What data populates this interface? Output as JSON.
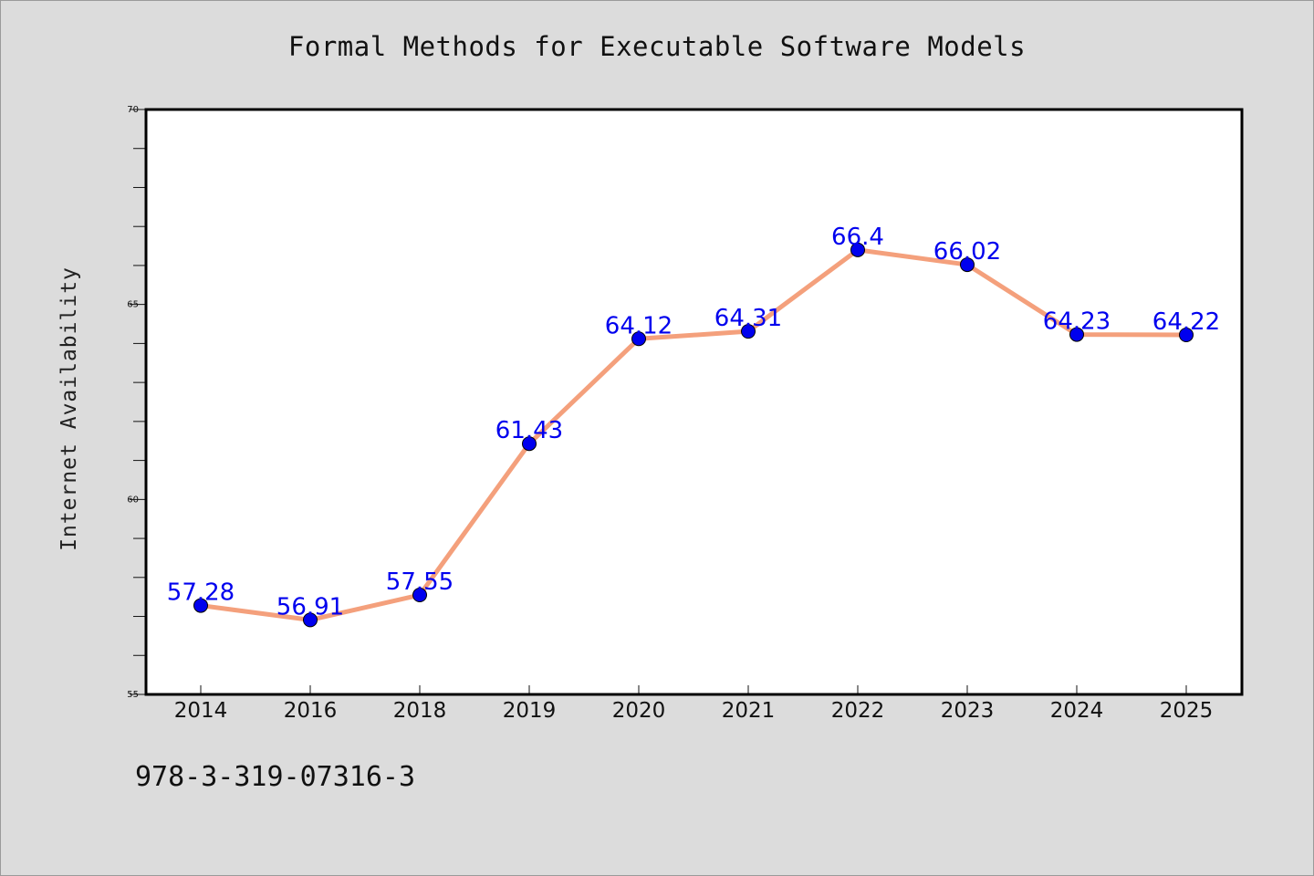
{
  "chart_data": {
    "type": "line",
    "title": "Formal Methods for Executable Software Models",
    "xlabel": "",
    "ylabel": "Internet Availability",
    "categories": [
      "2014",
      "2016",
      "2018",
      "2019",
      "2020",
      "2021",
      "2022",
      "2023",
      "2024",
      "2025"
    ],
    "series": [
      {
        "values": [
          57.28,
          56.91,
          57.55,
          61.43,
          64.12,
          64.31,
          66.4,
          66.02,
          64.23,
          64.22
        ],
        "data_labels": [
          "57.28",
          "56.91",
          "57.55",
          "61.43",
          "64.12",
          "64.31",
          "66.4",
          "66.02",
          "64.23",
          "64.22"
        ],
        "line_color": "#f4a07c",
        "marker_color": "#0000ee"
      }
    ],
    "ylim": [
      55,
      70
    ],
    "yticks": [
      "55",
      "60",
      "65",
      "70"
    ],
    "grid": false,
    "legend": "none"
  },
  "footer": {
    "isbn": "978-3-319-07316-3"
  },
  "colors": {
    "background": "#dcdcdc",
    "plot_area": "#ffffff",
    "data_label": "#0000ee"
  }
}
